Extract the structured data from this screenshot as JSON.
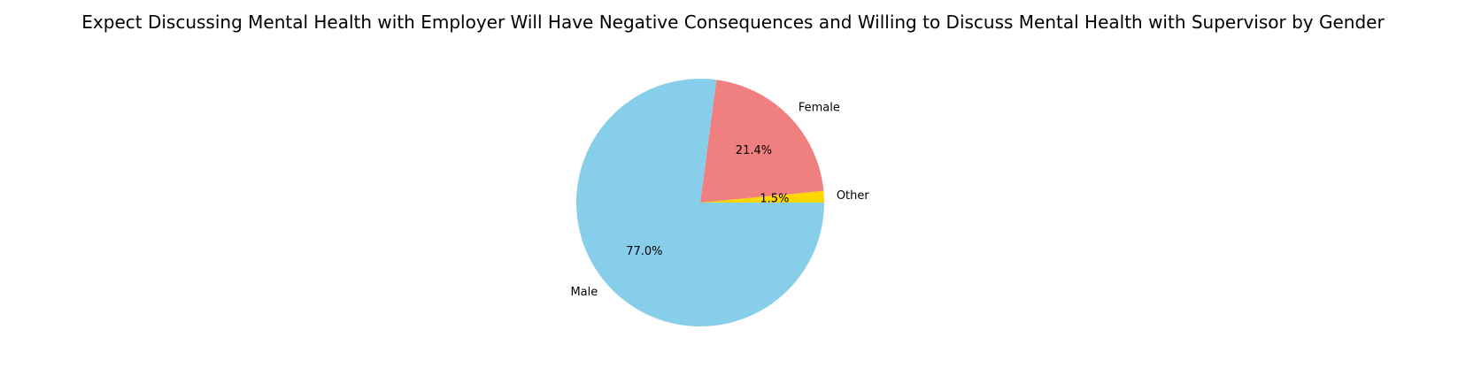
{
  "chart_data": {
    "type": "pie",
    "title": "Expect Discussing Mental Health with Employer Will Have Negative Consequences and Willing to Discuss Mental Health with Supervisor by Gender",
    "categories": [
      "Other",
      "Female",
      "Male"
    ],
    "values": [
      1.5,
      21.4,
      77.0
    ],
    "percent_labels": [
      "1.5%",
      "21.4%",
      "77.0%"
    ],
    "colors": [
      "#ffd700",
      "#f08080",
      "#87ceeb"
    ],
    "start_angle_deg": 0,
    "direction": "counterclockwise",
    "legend": "none"
  }
}
